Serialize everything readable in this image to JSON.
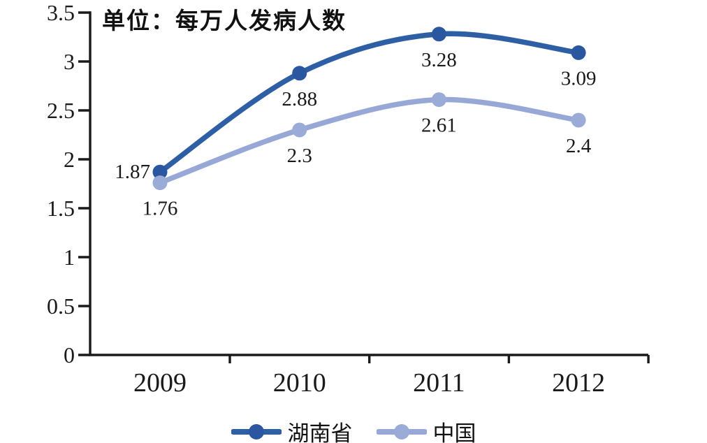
{
  "chart_data": {
    "type": "line",
    "title": "单位：每万人发病人数",
    "categories": [
      "2009",
      "2010",
      "2011",
      "2012"
    ],
    "series": [
      {
        "name": "湖南省",
        "values": [
          1.87,
          2.88,
          3.28,
          3.09
        ],
        "color": "#2E5FA5",
        "marker_color": "#2B57A0"
      },
      {
        "name": "中国",
        "values": [
          1.76,
          2.3,
          2.61,
          2.4
        ],
        "color": "#97A8D6",
        "marker_color": "#9AABD8"
      }
    ],
    "xlabel": "",
    "ylabel": "",
    "ylim": [
      0,
      3.5
    ],
    "yticks": [
      0,
      0.5,
      1,
      1.5,
      2,
      2.5,
      3,
      3.5
    ],
    "grid": false,
    "line_style": "smooth",
    "markers": "circle",
    "legend_position": "bottom",
    "axis_color": "#1A1A1A",
    "background": "#FFFFFF"
  }
}
